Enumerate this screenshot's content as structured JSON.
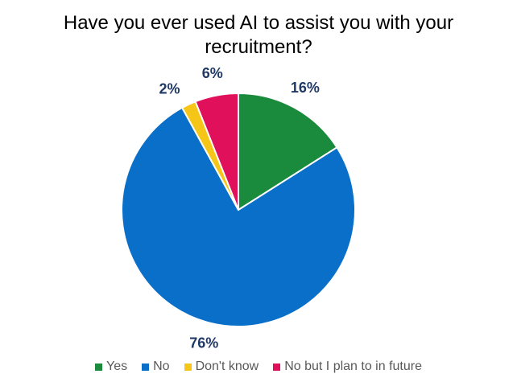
{
  "chart_data": {
    "type": "pie",
    "title": "Have you ever used AI to assist you with your recruitment?",
    "categories": [
      "Yes",
      "No",
      "Don't know",
      "No but I plan to in future"
    ],
    "values": [
      16,
      76,
      2,
      6
    ],
    "value_labels": [
      "16%",
      "76%",
      "2%",
      "6%"
    ],
    "colors": [
      "#1a8a3c",
      "#0a6fc8",
      "#f5c518",
      "#e0105a"
    ]
  }
}
